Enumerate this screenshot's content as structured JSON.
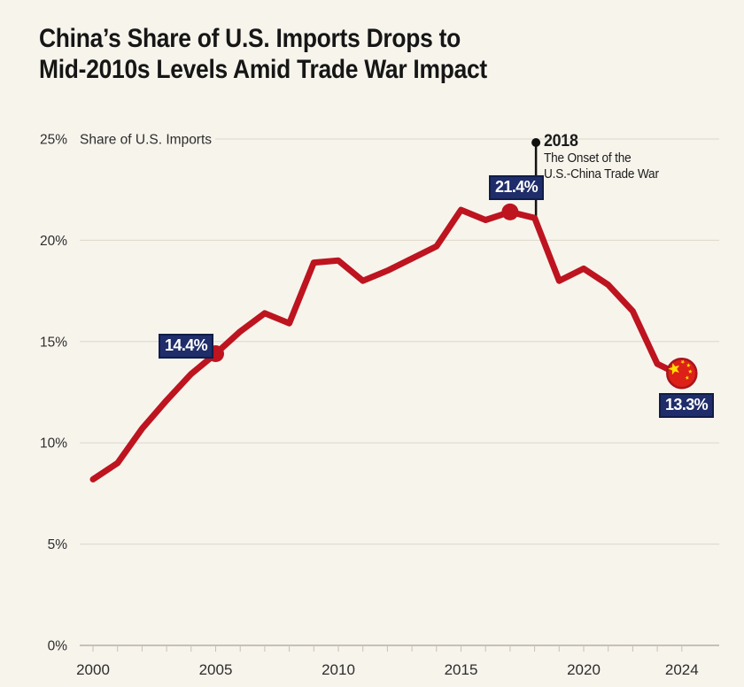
{
  "header": {
    "title": "China’s Share of U.S. Imports Drops to\nMid-2010s Levels Amid Trade War Impact"
  },
  "colors": {
    "background": "#f7f4ec",
    "line_red": "#bd141f",
    "badge_navy": "#1f2d6a",
    "badge_border": "#101d49",
    "gridline": "#dcd7ca",
    "axis": "#c6c1b4",
    "axis_text": "#2d2d2d",
    "annotation_black": "#111111",
    "flag_red": "#dd2018",
    "flag_rim": "#a8141c",
    "flag_star_yellow": "#ffde00"
  },
  "chart_data": {
    "type": "line",
    "title": "China’s Share of U.S. Imports Drops to Mid-2010s Levels Amid Trade War Impact",
    "ylabel": "Share of U.S. Imports",
    "xlabel": "",
    "grid": true,
    "legend": "none",
    "ylim": [
      0,
      25
    ],
    "xlim": [
      2000,
      2024
    ],
    "y_tick_labels": [
      "0%",
      "5%",
      "10%",
      "15%",
      "20%",
      "25%"
    ],
    "x_tick_years": [
      2000,
      2005,
      2010,
      2015,
      2020,
      2024
    ],
    "x_tick_labels": [
      "2000",
      "2005",
      "2010",
      "2015",
      "2020",
      "2024"
    ],
    "x": [
      2000,
      2001,
      2002,
      2003,
      2004,
      2005,
      2006,
      2007,
      2008,
      2009,
      2010,
      2011,
      2012,
      2013,
      2014,
      2015,
      2016,
      2017,
      2018,
      2019,
      2020,
      2021,
      2022,
      2023,
      2024
    ],
    "series": [
      {
        "name": "China share of U.S. imports (%)",
        "values": [
          8.2,
          9.0,
          10.7,
          12.1,
          13.4,
          14.4,
          15.5,
          16.4,
          15.9,
          18.9,
          19.0,
          18.0,
          18.5,
          19.1,
          19.7,
          21.5,
          21.0,
          21.4,
          21.1,
          18.0,
          18.6,
          17.8,
          16.5,
          13.9,
          13.3
        ]
      }
    ],
    "marked_points": [
      {
        "year": 2005,
        "value": 14.4,
        "label": "14.4%",
        "marker": "red-dot"
      },
      {
        "year": 2017,
        "value": 21.4,
        "label": "21.4%",
        "marker": "red-dot"
      },
      {
        "year": 2024,
        "value": 13.3,
        "label": "13.3%",
        "marker": "china-flag-ball"
      }
    ],
    "annotation": {
      "at_year": 2018,
      "year": "2018",
      "text_line1": "The Onset of the",
      "text_line2": "U.S.-China Trade War"
    }
  }
}
